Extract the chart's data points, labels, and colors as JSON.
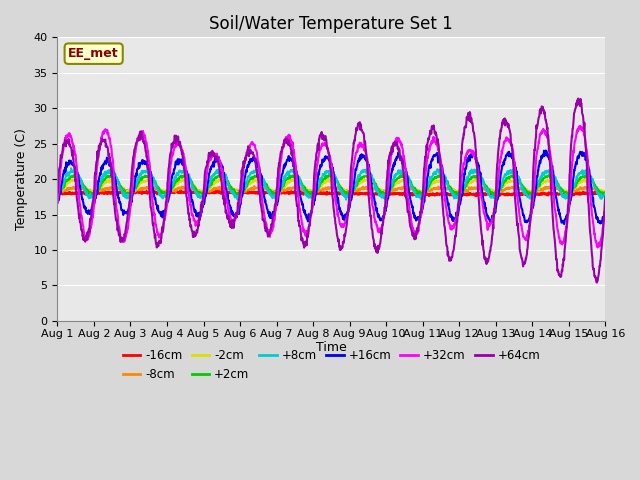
{
  "title": "Soil/Water Temperature Set 1",
  "xlabel": "Time",
  "ylabel": "Temperature (C)",
  "ylim": [
    0,
    40
  ],
  "xlim": [
    0,
    15
  ],
  "yticks": [
    0,
    5,
    10,
    15,
    20,
    25,
    30,
    35,
    40
  ],
  "xtick_labels": [
    "Aug 1",
    "Aug 2",
    "Aug 3",
    "Aug 4",
    "Aug 5",
    "Aug 6",
    "Aug 7",
    "Aug 8",
    "Aug 9",
    "Aug 10",
    "Aug 11",
    "Aug 12",
    "Aug 13",
    "Aug 14",
    "Aug 15",
    "Aug 16"
  ],
  "background_color": "#e8e8e8",
  "plot_bg_color": "#e8e8e8",
  "fig_bg_color": "#d8d8d8",
  "series": [
    {
      "label": "-16cm",
      "color": "#ff0000",
      "lw": 1.8
    },
    {
      "label": "-8cm",
      "color": "#ff8800",
      "lw": 1.5
    },
    {
      "label": "-2cm",
      "color": "#dddd00",
      "lw": 1.5
    },
    {
      "label": "+2cm",
      "color": "#00cc00",
      "lw": 1.5
    },
    {
      "label": "+8cm",
      "color": "#00cccc",
      "lw": 1.5
    },
    {
      "label": "+16cm",
      "color": "#0000ee",
      "lw": 1.5
    },
    {
      "label": "+32cm",
      "color": "#ff00ff",
      "lw": 1.5
    },
    {
      "label": "+64cm",
      "color": "#9900aa",
      "lw": 1.5
    }
  ],
  "annotation_text": "EE_met",
  "title_fontsize": 12,
  "axis_fontsize": 9,
  "tick_fontsize": 8
}
